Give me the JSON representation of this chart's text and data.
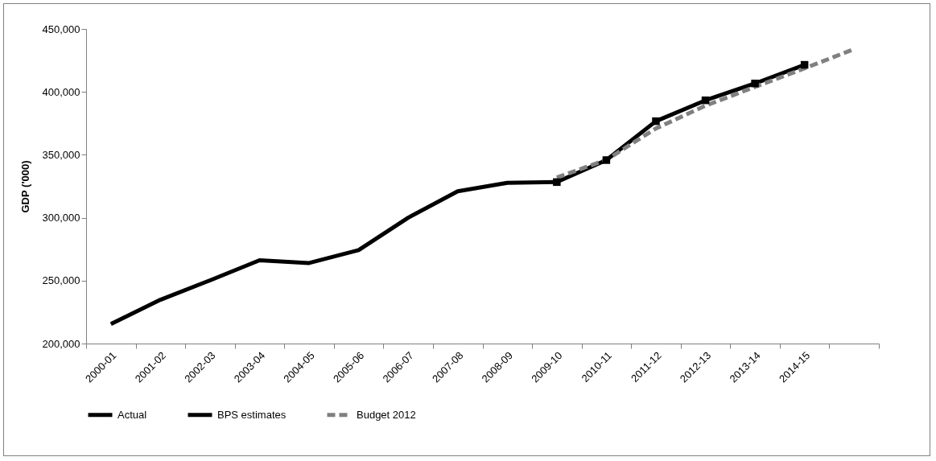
{
  "chart_data": {
    "type": "line",
    "ylabel": "GDP ('000)",
    "categories": [
      "2000-01",
      "2001-02",
      "2002-03",
      "2003-04",
      "2004-05",
      "2005-06",
      "2006-07",
      "2007-08",
      "2008-09",
      "2009-10",
      "2010-11",
      "2011-12",
      "2012-13",
      "2013-14",
      "2014-15",
      null
    ],
    "series": [
      {
        "name": "Actual",
        "color": "#000000",
        "values": [
          215500,
          234800,
          250200,
          266200,
          264000,
          274200,
          300000,
          321000,
          327700,
          328300,
          null,
          null,
          null,
          null,
          null,
          null
        ]
      },
      {
        "name": "BPS estimates",
        "color": "#000000",
        "marker": "square",
        "values": [
          null,
          null,
          null,
          null,
          null,
          null,
          null,
          null,
          null,
          328300,
          345800,
          376700,
          393300,
          406700,
          421500,
          null
        ]
      },
      {
        "name": "Budget 2012",
        "color": "#808080",
        "line_style": "dashed",
        "values": [
          null,
          null,
          null,
          null,
          null,
          null,
          null,
          null,
          null,
          331900,
          346000,
          370900,
          389000,
          404000,
          418700,
          434000
        ]
      }
    ],
    "ylim": [
      200000,
      450000
    ],
    "yticks": [
      {
        "value": 200000,
        "label": "200,000"
      },
      {
        "value": 250000,
        "label": "250,000"
      },
      {
        "value": 300000,
        "label": "300,000"
      },
      {
        "value": 350000,
        "label": "350,000"
      },
      {
        "value": 400000,
        "label": "400,000"
      },
      {
        "value": 450000,
        "label": "450,000"
      }
    ],
    "grid": false,
    "legend": "bottom"
  }
}
